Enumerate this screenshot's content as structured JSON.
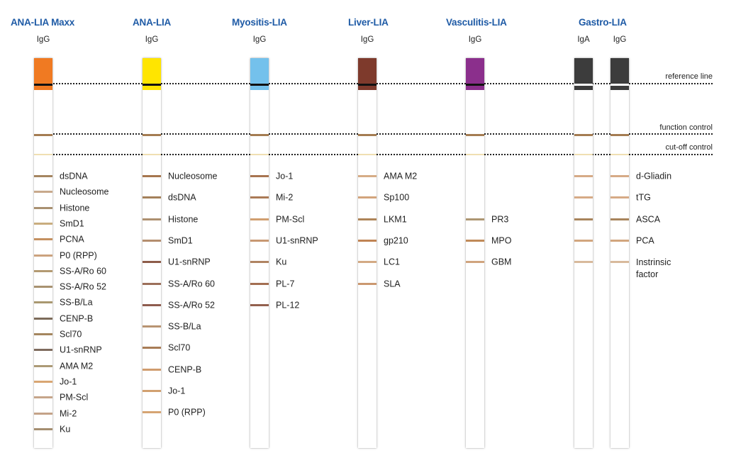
{
  "colors": {
    "title": "#1f5ba6",
    "function_band": "#a47c52",
    "cutoff_band": "#f0dfb2"
  },
  "reference_lines": {
    "reference_line": "reference line",
    "function_control": "function control",
    "cut_off_control": "cut-off control"
  },
  "products": [
    {
      "name": "ANA-LIA Maxx",
      "strips": [
        {
          "antibody": "IgG",
          "cap_color": "#f07a22",
          "ref_color": "#111111",
          "bands": [
            {
              "label": "dsDNA",
              "color": "#a58560"
            },
            {
              "label": "Nucleosome",
              "color": "#c8a98c"
            },
            {
              "label": "Histone",
              "color": "#a99070"
            },
            {
              "label": "SmD1",
              "color": "#c9ad7e"
            },
            {
              "label": "PCNA",
              "color": "#c49060"
            },
            {
              "label": "P0 (RPP)",
              "color": "#cba27e"
            },
            {
              "label": "SS-A/Ro 60",
              "color": "#b39a72"
            },
            {
              "label": "SS-A/Ro 52",
              "color": "#a89270"
            },
            {
              "label": "SS-B/La",
              "color": "#a99870"
            },
            {
              "label": "CENP-B",
              "color": "#7d6b5a"
            },
            {
              "label": "Scl70",
              "color": "#a4865e"
            },
            {
              "label": "U1-snRNP",
              "color": "#7f6b5e"
            },
            {
              "label": "AMA M2",
              "color": "#ac9a76"
            },
            {
              "label": "Jo-1",
              "color": "#d9a672"
            },
            {
              "label": "PM-Scl",
              "color": "#c6a58a"
            },
            {
              "label": "Mi-2",
              "color": "#c4a288"
            },
            {
              "label": "Ku",
              "color": "#a48e70"
            }
          ]
        }
      ]
    },
    {
      "name": "ANA-LIA",
      "strips": [
        {
          "antibody": "IgG",
          "cap_color": "#ffe500",
          "ref_color": "#111111",
          "bands": [
            {
              "label": "Nucleosome",
              "color": "#a6764e"
            },
            {
              "label": "dsDNA",
              "color": "#a4805a"
            },
            {
              "label": "Histone",
              "color": "#ad9070"
            },
            {
              "label": "SmD1",
              "color": "#b48e6e"
            },
            {
              "label": "U1-snRNP",
              "color": "#8e5d4a"
            },
            {
              "label": "SS-A/Ro 60",
              "color": "#9c6f5a"
            },
            {
              "label": "SS-A/Ro 52",
              "color": "#8e5c4e"
            },
            {
              "label": "SS-B/La",
              "color": "#b89472"
            },
            {
              "label": "Scl70",
              "color": "#a87c56"
            },
            {
              "label": "CENP-B",
              "color": "#d09c6e"
            },
            {
              "label": "Jo-1",
              "color": "#d2a070"
            },
            {
              "label": "P0 (RPP)",
              "color": "#d6a472"
            }
          ]
        }
      ]
    },
    {
      "name": "Myositis-LIA",
      "strips": [
        {
          "antibody": "IgG",
          "cap_color": "#74c1ec",
          "ref_color": "#111111",
          "bands": [
            {
              "label": "Jo-1",
              "color": "#a87450"
            },
            {
              "label": "Mi-2",
              "color": "#aa7a56"
            },
            {
              "label": "PM-Scl",
              "color": "#d09e70"
            },
            {
              "label": "U1-snRNP",
              "color": "#c89872"
            },
            {
              "label": "Ku",
              "color": "#b08462"
            },
            {
              "label": "PL-7",
              "color": "#a36e52"
            },
            {
              "label": "PL-12",
              "color": "#93604e"
            }
          ]
        }
      ]
    },
    {
      "name": "Liver-LIA",
      "strips": [
        {
          "antibody": "IgG",
          "cap_color": "#7e3a2c",
          "ref_color": "#111111",
          "bands": [
            {
              "label": "AMA M2",
              "color": "#d6ac86"
            },
            {
              "label": "Sp100",
              "color": "#d2a47c"
            },
            {
              "label": "LKM1",
              "color": "#ae8458"
            },
            {
              "label": "gp210",
              "color": "#c08454"
            },
            {
              "label": "LC1",
              "color": "#d3aa84"
            },
            {
              "label": "SLA",
              "color": "#cb9870"
            }
          ]
        }
      ]
    },
    {
      "name": "Vasculitis-LIA",
      "strips": [
        {
          "antibody": "IgG",
          "cap_color": "#8b2f8c",
          "ref_color": "#111111",
          "bands": [
            {
              "label": "",
              "color": ""
            },
            {
              "label": "",
              "color": ""
            },
            {
              "label": "PR3",
              "color": "#ad9672"
            },
            {
              "label": "MPO",
              "color": "#c08a58"
            },
            {
              "label": "GBM",
              "color": "#d0a47e"
            }
          ]
        }
      ]
    },
    {
      "name": "Gastro-LIA",
      "strips": [
        {
          "antibody": "IgA",
          "cap_color": "#3c3c3c",
          "ref_color": "#ffffff",
          "bands": [
            {
              "label": "",
              "color": "#d6aa86"
            },
            {
              "label": "",
              "color": "#d6aa86"
            },
            {
              "label": "",
              "color": "#a8845c"
            },
            {
              "label": "",
              "color": "#d2a67e"
            },
            {
              "label": "",
              "color": "#d8ba9c"
            }
          ]
        },
        {
          "antibody": "IgG",
          "cap_color": "#3c3c3c",
          "ref_color": "#ffffff",
          "bands": [
            {
              "label": "d-Gliadin",
              "color": "#d6aa86"
            },
            {
              "label": "tTG",
              "color": "#d6aa86"
            },
            {
              "label": "ASCA",
              "color": "#a8845c"
            },
            {
              "label": "PCA",
              "color": "#d2a67e"
            },
            {
              "label": "Instrinsic factor",
              "color": "#d8ba9c"
            }
          ]
        }
      ]
    }
  ]
}
